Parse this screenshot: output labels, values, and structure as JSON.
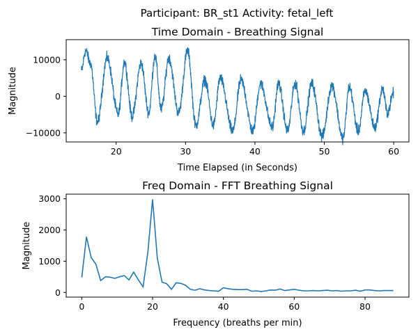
{
  "suptitle": "Participant: BR_st1  Activity: fetal_left",
  "series_color": "#1f77b4",
  "chart_data": [
    {
      "type": "line",
      "title": "Time Domain - Breathing Signal",
      "xlabel": "Time Elapsed (in Seconds)",
      "ylabel": "Magnitude",
      "xlim": [
        12.8,
        62.2
      ],
      "ylim": [
        -12500,
        15500
      ],
      "xticks": [
        20,
        30,
        40,
        50,
        60
      ],
      "yticks": [
        -10000,
        0,
        10000
      ],
      "signal": {
        "x_start": 15.0,
        "x_end": 60.0,
        "peaks": [
          [
            15.0,
            7000
          ],
          [
            15.6,
            12500
          ],
          [
            16.3,
            9000
          ],
          [
            17.3,
            -7000
          ],
          [
            18.7,
            10500
          ],
          [
            20.3,
            -5000
          ],
          [
            21.2,
            9500
          ],
          [
            22.3,
            -5500
          ],
          [
            23.6,
            9000
          ],
          [
            24.7,
            -4500
          ],
          [
            25.6,
            11000
          ],
          [
            26.5,
            -3500
          ],
          [
            27.6,
            10500
          ],
          [
            29.0,
            -4500
          ],
          [
            30.3,
            12500
          ],
          [
            31.5,
            -8000
          ],
          [
            32.8,
            4500
          ],
          [
            34.0,
            -8000
          ],
          [
            35.0,
            5000
          ],
          [
            36.8,
            -9500
          ],
          [
            38.0,
            4500
          ],
          [
            39.7,
            -9500
          ],
          [
            40.8,
            3500
          ],
          [
            42.5,
            -8500
          ],
          [
            43.4,
            3500
          ],
          [
            44.7,
            -9500
          ],
          [
            45.8,
            3500
          ],
          [
            47.0,
            -9500
          ],
          [
            48.2,
            3500
          ],
          [
            49.7,
            -11000
          ],
          [
            51.1,
            3000
          ],
          [
            52.7,
            -11500
          ],
          [
            53.6,
            2500
          ],
          [
            54.9,
            -9500
          ],
          [
            55.9,
            1500
          ],
          [
            57.3,
            -8500
          ],
          [
            58.4,
            2000
          ],
          [
            59.1,
            -4500
          ],
          [
            60.0,
            1000
          ]
        ]
      }
    },
    {
      "type": "line",
      "title": "Freq Domain - FFT Breathing Signal",
      "xlabel": "Frequency (breaths per min)",
      "ylabel": "Magnitude",
      "xlim": [
        -4.4,
        92.4
      ],
      "ylim": [
        -150,
        3150
      ],
      "xticks": [
        0,
        20,
        40,
        60,
        80
      ],
      "yticks": [
        0,
        1000,
        2000,
        3000
      ],
      "x": [
        0,
        1.33,
        2.67,
        4.0,
        5.33,
        6.67,
        8.0,
        9.33,
        10.67,
        12.0,
        13.33,
        14.67,
        16.0,
        17.33,
        18.67,
        20.0,
        21.33,
        22.67,
        24.0,
        25.33,
        26.67,
        28.0,
        29.33,
        30.67,
        32.0,
        33.33,
        34.67,
        36.0,
        37.33,
        38.67,
        40.0,
        41.33,
        42.67,
        44.0,
        45.33,
        46.67,
        48.0,
        49.33,
        50.67,
        52.0,
        53.33,
        54.67,
        56.0,
        57.33,
        58.67,
        60.0,
        61.33,
        62.67,
        64.0,
        65.33,
        66.67,
        68.0,
        69.33,
        70.67,
        72.0,
        73.33,
        74.67,
        76.0,
        77.33,
        78.67,
        80.0,
        81.33,
        82.67,
        84.0,
        85.33,
        86.67,
        88.0
      ],
      "y": [
        480,
        1780,
        1120,
        900,
        380,
        500,
        490,
        450,
        500,
        540,
        400,
        650,
        400,
        180,
        1300,
        2980,
        1100,
        330,
        280,
        100,
        310,
        290,
        230,
        100,
        70,
        120,
        80,
        60,
        50,
        40,
        150,
        120,
        100,
        90,
        90,
        100,
        40,
        50,
        30,
        50,
        80,
        70,
        110,
        60,
        80,
        100,
        70,
        50,
        50,
        60,
        50,
        60,
        70,
        50,
        60,
        40,
        50,
        50,
        70,
        40,
        80,
        80,
        60,
        50,
        60,
        60,
        60
      ]
    }
  ]
}
